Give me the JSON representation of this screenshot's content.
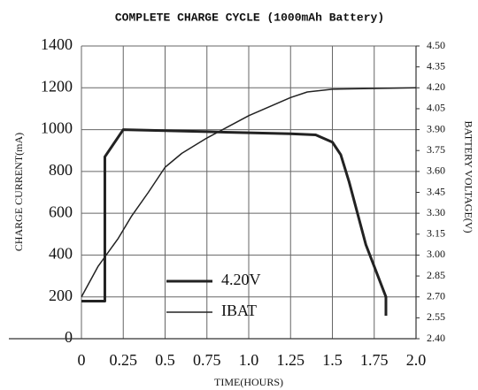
{
  "chart_data": {
    "type": "line",
    "title": "COMPLETE CHARGE CYCLE (1000mAh Battery)",
    "x_label": "TIME(HOURS)",
    "y_label": "CHARGE CURRENT(mA)",
    "y2_label": "BATTERY VOLTAGE(V)",
    "xlim": [
      0,
      2.0
    ],
    "xticks": [
      0,
      0.25,
      0.5,
      0.75,
      {
        "value": 1.0,
        "label": "1.0"
      },
      1.25,
      {
        "value": 1.5,
        "label": "1.5"
      },
      1.75,
      {
        "value": 2.0,
        "label": "2.0"
      }
    ],
    "ylim": [
      0,
      1400
    ],
    "yticks": [
      0,
      200,
      400,
      600,
      800,
      1000,
      1200,
      1400
    ],
    "y2lim": [
      2.4,
      4.5
    ],
    "y2ticks": [
      {
        "value": 2.4,
        "label": "2.40"
      },
      2.55,
      {
        "value": 2.7,
        "label": "2.70"
      },
      2.85,
      {
        "value": 3.0,
        "label": "3.00"
      },
      3.15,
      {
        "value": 3.3,
        "label": "3.30"
      },
      3.45,
      {
        "value": 3.6,
        "label": "3.60"
      },
      3.75,
      {
        "value": 3.9,
        "label": "3.90"
      },
      4.05,
      {
        "value": 4.2,
        "label": "4.20"
      },
      4.35,
      {
        "value": 4.5,
        "label": "4.50"
      }
    ],
    "grid": true,
    "series": [
      {
        "name": "4.20V",
        "color": "#222222",
        "width": 3,
        "x": [
          0,
          0.14,
          0.14,
          0.25,
          0.5,
          0.75,
          1.0,
          1.25,
          1.4,
          1.5,
          1.55,
          1.6,
          1.7,
          1.82,
          1.82
        ],
        "values": [
          180,
          180,
          870,
          1000,
          995,
          990,
          985,
          980,
          975,
          940,
          880,
          750,
          450,
          200,
          110
        ]
      },
      {
        "name": "IBAT",
        "color": "#222222",
        "width": 1.5,
        "axis": "y2",
        "x": [
          0,
          0.1,
          0.22,
          0.3,
          0.4,
          0.5,
          0.6,
          0.75,
          1.0,
          1.25,
          1.35,
          1.5,
          2.0
        ],
        "values": [
          2.7,
          2.92,
          3.12,
          3.28,
          3.45,
          3.63,
          3.73,
          3.84,
          4.0,
          4.13,
          4.17,
          4.19,
          4.2
        ]
      }
    ]
  }
}
